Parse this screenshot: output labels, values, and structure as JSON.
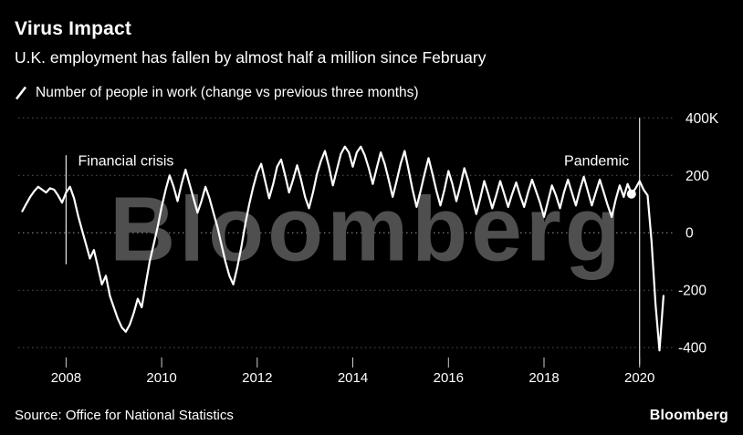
{
  "header": {
    "title": "Virus Impact",
    "subtitle": "U.K. employment has fallen by almost half a million since February"
  },
  "legend": {
    "label": "Number of people in work (change vs previous three months)"
  },
  "watermark": "Bloomberg",
  "footer": {
    "source": "Source: Office for National Statistics",
    "brand": "Bloomberg"
  },
  "colors": {
    "background": "#000000",
    "text": "#ffffff",
    "line": "#ffffff",
    "grid": "#555555",
    "zero_grid": "#9a9a9a",
    "watermark": "#4f4f4f",
    "annotation_line": "#e6e6e6",
    "tick": "#cccccc"
  },
  "chart_data": {
    "type": "line",
    "title": "Virus Impact",
    "subtitle": "U.K. employment has fallen by almost half a million since February",
    "ylabel_unit": "thousands of people (K)",
    "xlim": [
      2007.0,
      2020.75
    ],
    "ylim": [
      -460,
      420
    ],
    "grid": "horizontal-dotted",
    "legend_position": "top-left",
    "xticks": [
      2008,
      2010,
      2012,
      2014,
      2016,
      2018,
      2020
    ],
    "yticks": [
      {
        "value": 400,
        "label": "400K"
      },
      {
        "value": 200,
        "label": "200"
      },
      {
        "value": 0,
        "label": "0"
      },
      {
        "value": -200,
        "label": "-200"
      },
      {
        "value": -400,
        "label": "-400"
      }
    ],
    "series": [
      {
        "name": "Number of people in work (change vs previous three months)",
        "frequency": "monthly",
        "start_year": 2007,
        "start_month": 2,
        "unit": "thousands",
        "values": [
          75,
          100,
          125,
          145,
          160,
          150,
          140,
          155,
          150,
          130,
          105,
          140,
          160,
          120,
          60,
          10,
          -40,
          -90,
          -60,
          -120,
          -180,
          -150,
          -220,
          -260,
          -300,
          -330,
          -345,
          -320,
          -280,
          -230,
          -260,
          -180,
          -100,
          -40,
          20,
          90,
          150,
          200,
          160,
          110,
          170,
          220,
          170,
          120,
          70,
          110,
          160,
          120,
          70,
          20,
          -40,
          -100,
          -150,
          -180,
          -120,
          -50,
          30,
          100,
          160,
          210,
          240,
          180,
          120,
          170,
          230,
          255,
          200,
          140,
          185,
          235,
          185,
          125,
          85,
          140,
          205,
          250,
          285,
          230,
          165,
          220,
          275,
          300,
          280,
          230,
          280,
          300,
          270,
          225,
          170,
          225,
          280,
          240,
          185,
          125,
          180,
          240,
          285,
          220,
          150,
          90,
          145,
          205,
          260,
          205,
          145,
          95,
          150,
          215,
          170,
          110,
          165,
          225,
          180,
          120,
          65,
          120,
          180,
          135,
          85,
          130,
          180,
          135,
          90,
          135,
          175,
          130,
          90,
          140,
          185,
          145,
          105,
          55,
          110,
          165,
          130,
          85,
          140,
          185,
          140,
          95,
          150,
          195,
          145,
          95,
          140,
          185,
          140,
          95,
          55,
          115,
          165,
          125,
          170,
          135,
          155,
          180,
          150,
          130,
          -30,
          -250,
          -410,
          -220
        ]
      }
    ],
    "annotations": [
      {
        "label": "Financial crisis",
        "x": 2008.0,
        "line_y_top": 270,
        "line_y_bottom": -110,
        "label_x": 2008.25,
        "label_y": 250,
        "align": "left"
      },
      {
        "label": "Pandemic",
        "x": 2020.0,
        "line_y_top": 400,
        "line_y_bottom": -460,
        "label_x": 2019.78,
        "label_y": 250,
        "align": "right"
      }
    ],
    "marker": {
      "x": 2019.83,
      "value": 135
    }
  }
}
